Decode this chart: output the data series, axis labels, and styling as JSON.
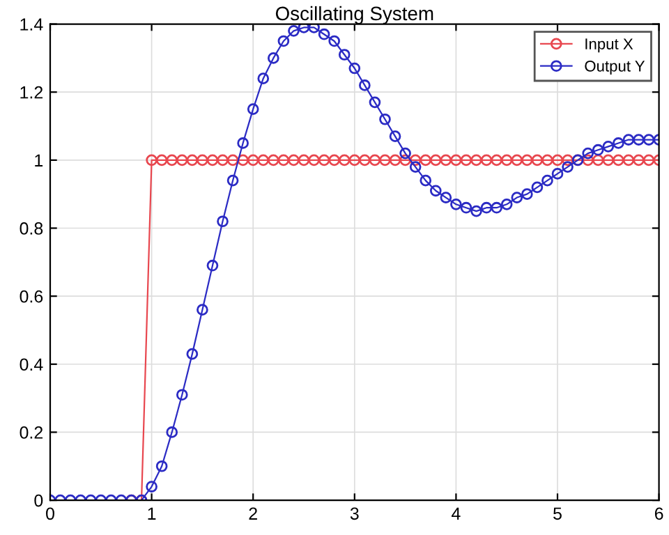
{
  "chart_data": {
    "type": "line",
    "title": "Oscillating System",
    "x": [
      0,
      0.1,
      0.2,
      0.3,
      0.4,
      0.5,
      0.6,
      0.7,
      0.8,
      0.9,
      1,
      1.1,
      1.2,
      1.3,
      1.4,
      1.5,
      1.6,
      1.7,
      1.8,
      1.9,
      2,
      2.1,
      2.2,
      2.3,
      2.4,
      2.5,
      2.6,
      2.7,
      2.8,
      2.9,
      3,
      3.1,
      3.2,
      3.3,
      3.4,
      3.5,
      3.6,
      3.7,
      3.8,
      3.9,
      4,
      4.1,
      4.2,
      4.3,
      4.4,
      4.5,
      4.6,
      4.7,
      4.8,
      4.9,
      5,
      5.1,
      5.2,
      5.3,
      5.4,
      5.5,
      5.6,
      5.7,
      5.8,
      5.9,
      6
    ],
    "series": [
      {
        "name": "Input X",
        "color": "#e8474f",
        "values": [
          null,
          null,
          null,
          null,
          null,
          null,
          null,
          null,
          0,
          0,
          1,
          1,
          1,
          1,
          1,
          1,
          1,
          1,
          1,
          1,
          1,
          1,
          1,
          1,
          1,
          1,
          1,
          1,
          1,
          1,
          1,
          1,
          1,
          1,
          1,
          1,
          1,
          1,
          1,
          1,
          1,
          1,
          1,
          1,
          1,
          1,
          1,
          1,
          1,
          1,
          1,
          1,
          1,
          1,
          1,
          1,
          1,
          1,
          1,
          1,
          1
        ]
      },
      {
        "name": "Output Y",
        "color": "#2b2bc4",
        "values": [
          0,
          0,
          0,
          0,
          0,
          0,
          0,
          0,
          0,
          0,
          0.04,
          0.1,
          0.2,
          0.31,
          0.43,
          0.56,
          0.69,
          0.82,
          0.94,
          1.05,
          1.15,
          1.24,
          1.3,
          1.35,
          1.38,
          1.39,
          1.39,
          1.37,
          1.35,
          1.31,
          1.27,
          1.22,
          1.17,
          1.12,
          1.07,
          1.02,
          0.98,
          0.94,
          0.91,
          0.89,
          0.87,
          0.86,
          0.85,
          0.86,
          0.86,
          0.87,
          0.89,
          0.9,
          0.92,
          0.94,
          0.96,
          0.98,
          1.0,
          1.02,
          1.03,
          1.04,
          1.05,
          1.06,
          1.06,
          1.06,
          1.06
        ]
      }
    ],
    "xlim": [
      0,
      6
    ],
    "xticks": [
      0,
      1,
      2,
      3,
      4,
      5,
      6
    ],
    "ylim": [
      0,
      1.4
    ],
    "yticks": [
      0,
      0.2,
      0.4,
      0.6,
      0.8,
      1,
      1.2,
      1.4
    ],
    "grid": true,
    "legend": "top right",
    "marker": "circle",
    "line_style": "solid"
  }
}
